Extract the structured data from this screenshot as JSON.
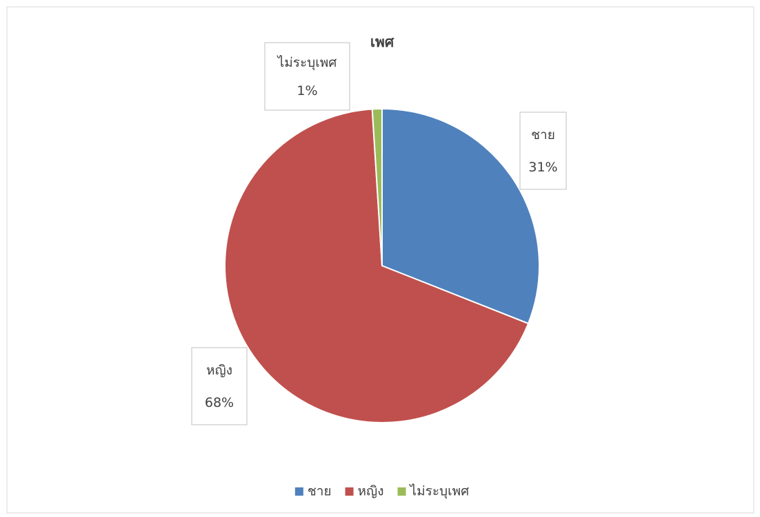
{
  "chart_data": {
    "type": "pie",
    "title": "เพศ",
    "categories": [
      "ชาย",
      "หญิง",
      "ไม่ระบุเพศ"
    ],
    "values": [
      31,
      68,
      1
    ],
    "value_labels": [
      "31%",
      "68%",
      "1%"
    ],
    "colors": [
      "#4f81bd",
      "#c0504d",
      "#9bbb59"
    ],
    "legend": "bottom"
  }
}
